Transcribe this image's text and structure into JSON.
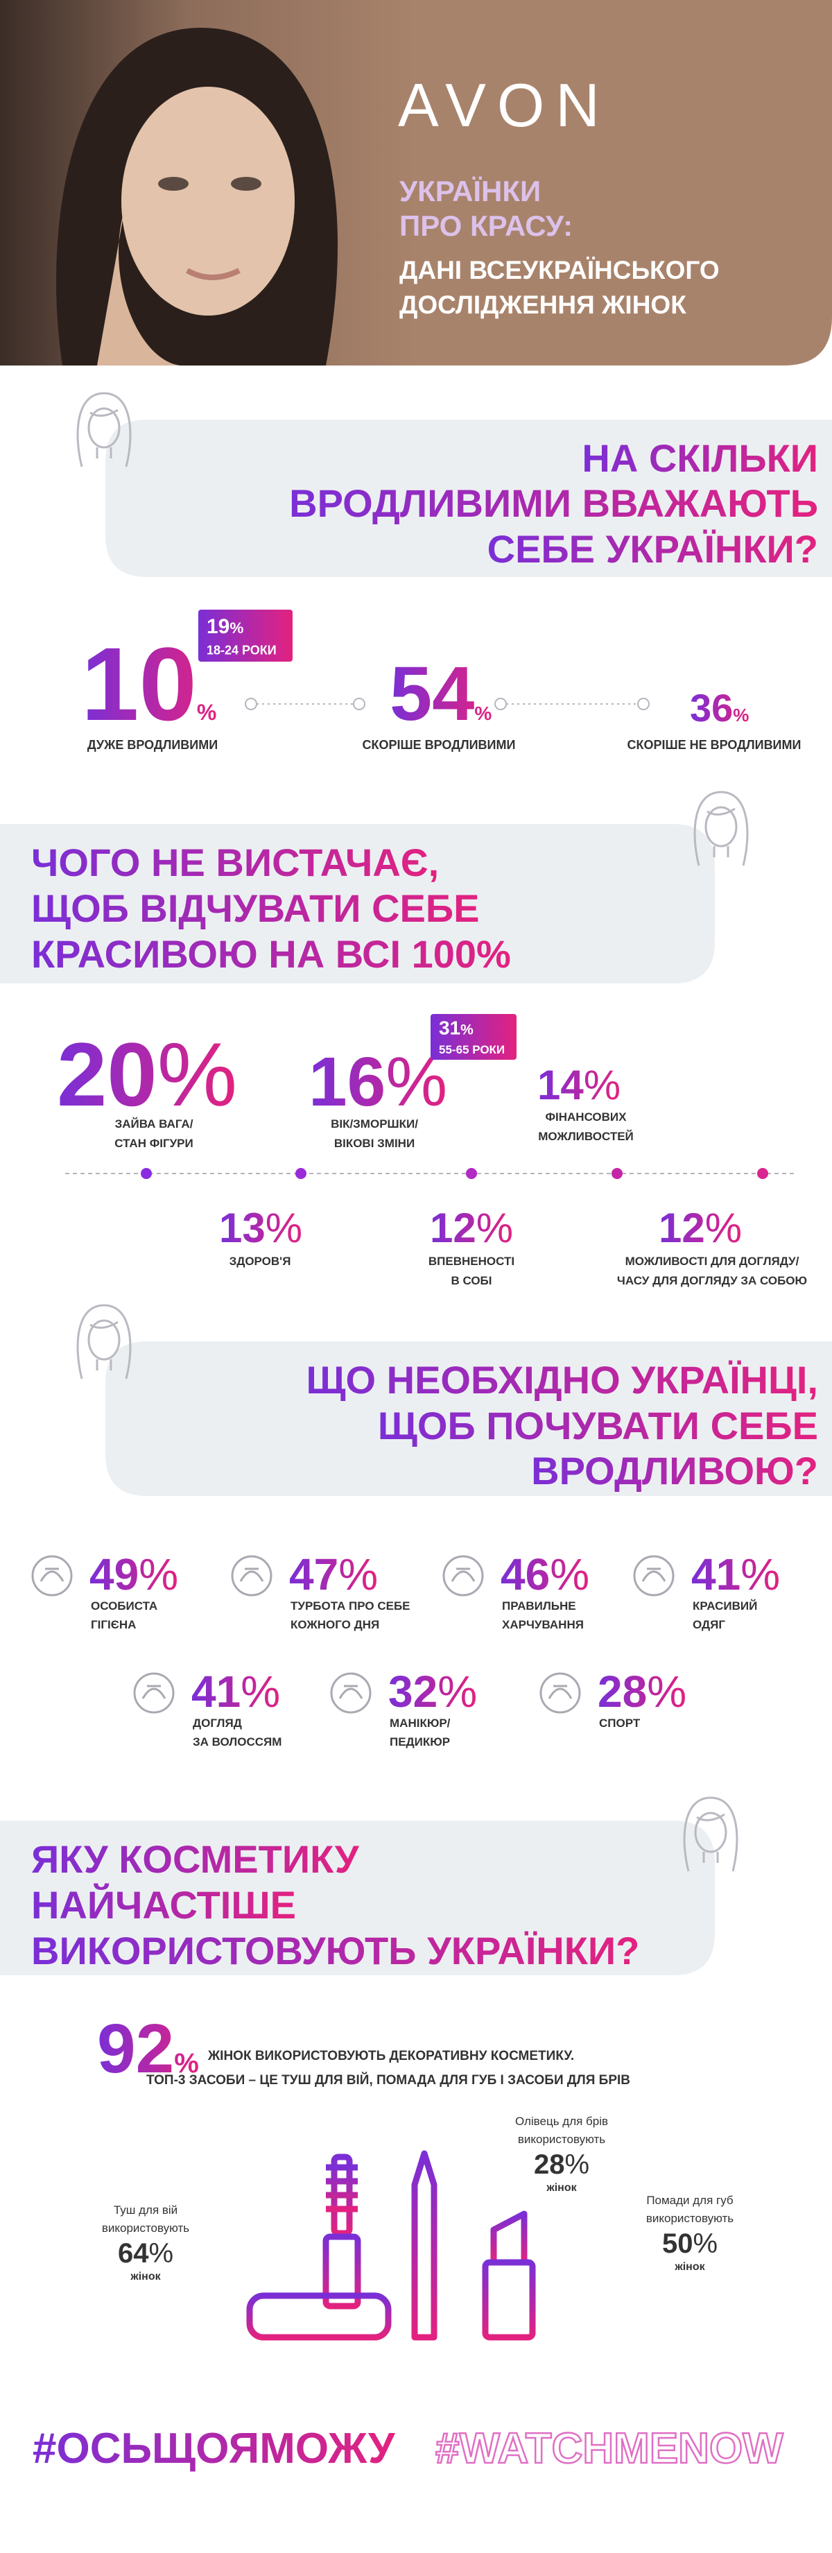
{
  "header": {
    "brand": "AVON",
    "title": [
      "УКРАЇНКИ",
      "ПРО КРАСУ:"
    ],
    "subtitle": [
      "ДАНІ ВСЕУКРАЇНСЬКОГО",
      "ДОСЛІДЖЕННЯ ЖІНОК"
    ]
  },
  "sections": [
    {
      "title": [
        "НА СКІЛЬКИ",
        "ВРОДЛИВИМИ ВВАЖАЮТЬ",
        "СЕБЕ УКРАЇНКИ?"
      ],
      "stats": [
        {
          "value": 10,
          "unit": "%",
          "label": [
            "ДУЖЕ ВРОДЛИВИМИ"
          ],
          "badge": {
            "value": 19,
            "unit": "%",
            "label": "18-24 РОКИ"
          }
        },
        {
          "value": 54,
          "unit": "%",
          "label": [
            "СКОРІШЕ ВРОДЛИВИМИ"
          ]
        },
        {
          "value": 36,
          "unit": "%",
          "label": [
            "СКОРІШЕ НЕ ВРОДЛИВИМИ"
          ]
        }
      ]
    },
    {
      "title": [
        "ЧОГО НЕ ВИСТАЧАЄ,",
        "ЩОБ ВІДЧУВАТИ СЕБЕ",
        "КРАСИВОЮ НА ВСІ 100%"
      ],
      "stats": [
        {
          "value": 20,
          "unit": "%",
          "label": [
            "ЗАЙВА ВАГА/",
            "СТАН ФІГУРИ"
          ]
        },
        {
          "value": 16,
          "unit": "%",
          "label": [
            "ВІК/ЗМОРШКИ/",
            "ВІКОВІ ЗМІНИ"
          ],
          "badge": {
            "value": 31,
            "unit": "%",
            "label": "55-65 РОКИ"
          }
        },
        {
          "value": 14,
          "unit": "%",
          "label": [
            "ФІНАНСОВИХ",
            "МОЖЛИВОСТЕЙ"
          ]
        },
        {
          "value": 13,
          "unit": "%",
          "label": [
            "ЗДОРОВ'Я"
          ]
        },
        {
          "value": 12,
          "unit": "%",
          "label": [
            "ВПЕВНЕНОСТІ",
            "В СОБІ"
          ]
        },
        {
          "value": 12,
          "unit": "%",
          "label": [
            "МОЖЛИВОСТІ ДЛЯ ДОГЛЯДУ/",
            "ЧАСУ ДЛЯ ДОГЛЯДУ ЗА СОБОЮ"
          ]
        }
      ]
    },
    {
      "title": [
        "ЩО НЕОБХІДНО УКРАЇНЦІ,",
        "ЩОБ ПОЧУВАТИ СЕБЕ",
        "ВРОДЛИВОЮ?"
      ],
      "stats": [
        {
          "value": 49,
          "unit": "%",
          "label": [
            "ОСОБИСТА",
            "ГІГІЄНА"
          ]
        },
        {
          "value": 47,
          "unit": "%",
          "label": [
            "ТУРБОТА ПРО СЕБЕ",
            "КОЖНОГО ДНЯ"
          ]
        },
        {
          "value": 46,
          "unit": "%",
          "label": [
            "ПРАВИЛЬНЕ",
            "ХАРЧУВАННЯ"
          ]
        },
        {
          "value": 41,
          "unit": "%",
          "label": [
            "КРАСИВИЙ",
            "ОДЯГ"
          ]
        },
        {
          "value": 41,
          "unit": "%",
          "label": [
            "ДОГЛЯД",
            "ЗА ВОЛОССЯМ"
          ]
        },
        {
          "value": 32,
          "unit": "%",
          "label": [
            "МАНІКЮР/",
            "ПЕДИКЮР"
          ]
        },
        {
          "value": 28,
          "unit": "%",
          "label": [
            "СПОРТ"
          ]
        }
      ]
    },
    {
      "title": [
        "ЯКУ КОСМЕТИКУ",
        "НАЙЧАСТІШЕ",
        "ВИКОРИСТОВУЮТЬ УКРАЇНКИ?"
      ],
      "headline": {
        "value": 92,
        "unit": "%",
        "text": "ЖІНОК ВИКОРИСТОВУЮТЬ ДЕКОРАТИВНУ КОСМЕТИКУ.",
        "detail": "ТОП-3 ЗАСОБИ – ЦЕ ТУШ ДЛЯ ВІЙ, ПОМАДА ДЛЯ ГУБ І ЗАСОБИ ДЛЯ БРІВ"
      },
      "products": [
        {
          "name": "Олівець для брів",
          "verb": "використовують",
          "value": 28,
          "unit": "%",
          "note": "жінок"
        },
        {
          "name": "Туш для вій",
          "verb": "використовують",
          "value": 64,
          "unit": "%",
          "note": "жінок"
        },
        {
          "name": "Помади для губ",
          "verb": "використовують",
          "value": 50,
          "unit": "%",
          "note": "жінок"
        }
      ]
    }
  ],
  "hashtags": [
    "#ОСЬЩОЯМОЖУ",
    "#WATCHMENOW"
  ]
}
